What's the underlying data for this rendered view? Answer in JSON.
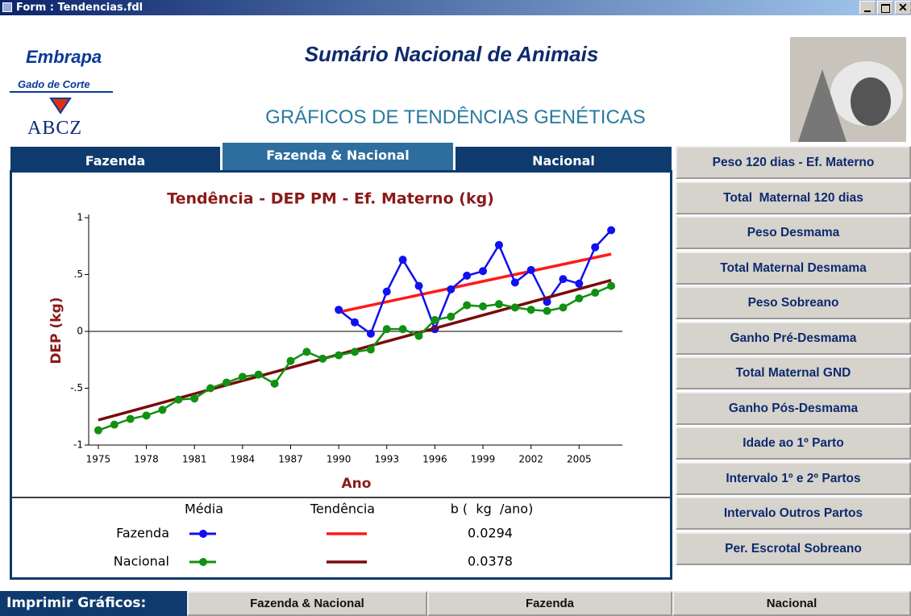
{
  "window": {
    "title": "Form : Tendencias.fdl"
  },
  "header": {
    "logo": "Embrapa",
    "logo_subtitle": "Gado de Corte",
    "logo2": "ABCZ",
    "title": "Sumário Nacional de Animais",
    "subtitle": "GRÁFICOS DE TENDÊNCIAS GENÉTICAS"
  },
  "tabs": [
    "Fazenda",
    "Fazenda & Nacional",
    "Nacional"
  ],
  "buttons": [
    "Peso 120 dias - Ef. Materno",
    "Total  Maternal 120 dias",
    "Peso Desmama",
    "Total Maternal Desmama",
    "Peso Sobreano",
    "Ganho Pré-Desmama",
    "Total Maternal GND",
    "Ganho Pós-Desmama",
    "Idade ao 1º Parto",
    "Intervalo 1º e 2º Partos",
    "Intervalo Outros Partos",
    "Per. Escrotal Sobreano"
  ],
  "print": {
    "label": "Imprimir Gráficos:",
    "buttons": [
      "Fazenda & Nacional",
      "Fazenda",
      "Nacional"
    ]
  },
  "chart_data": {
    "type": "line",
    "title": "Tendência - DEP PM - Ef. Materno (kg)",
    "x_label": "Ano",
    "y_label": "DEP (kg)",
    "x": [
      1975,
      1976,
      1977,
      1978,
      1979,
      1980,
      1981,
      1982,
      1983,
      1984,
      1985,
      1986,
      1987,
      1988,
      1989,
      1990,
      1991,
      1992,
      1993,
      1994,
      1995,
      1996,
      1997,
      1998,
      1999,
      2000,
      2001,
      2002,
      2003,
      2004,
      2005,
      2006,
      2007
    ],
    "series": [
      {
        "name": "Fazenda",
        "color": "#1010f0",
        "values": [
          null,
          null,
          null,
          null,
          null,
          null,
          null,
          null,
          null,
          null,
          null,
          null,
          null,
          null,
          null,
          0.19,
          0.08,
          -0.02,
          0.35,
          0.63,
          0.4,
          0.02,
          0.37,
          0.49,
          0.53,
          0.76,
          0.43,
          0.54,
          0.26,
          0.46,
          0.42,
          0.74,
          0.89
        ],
        "trend": {
          "color": "#ff1a1a",
          "x": [
            1990,
            2007
          ],
          "values": [
            0.17,
            0.68
          ]
        },
        "b": 0.0294
      },
      {
        "name": "Nacional",
        "color": "#119011",
        "values": [
          -0.87,
          -0.82,
          -0.77,
          -0.74,
          -0.69,
          -0.6,
          -0.59,
          -0.5,
          -0.45,
          -0.4,
          -0.38,
          -0.46,
          -0.26,
          -0.18,
          -0.24,
          -0.21,
          -0.18,
          -0.16,
          0.02,
          0.02,
          -0.04,
          0.1,
          0.13,
          0.23,
          0.22,
          0.24,
          0.21,
          0.19,
          0.18,
          0.21,
          0.29,
          0.34,
          0.4
        ],
        "trend": {
          "color": "#7a0a0a",
          "x": [
            1975,
            2007
          ],
          "values": [
            -0.78,
            0.45
          ]
        },
        "b": 0.0378
      }
    ],
    "legend_headers": [
      "Média",
      "Tendência",
      "b (  kg  /ano)"
    ],
    "xlim": [
      1974.4,
      2007.7
    ],
    "ylim": [
      -1,
      1
    ],
    "xticks": [
      1975,
      1978,
      1981,
      1984,
      1987,
      1990,
      1993,
      1996,
      1999,
      2002,
      2005
    ],
    "yticks": [
      1,
      {
        "value": 0.5,
        "label": ".5"
      },
      0,
      {
        "value": -0.5,
        "label": "-.5"
      },
      -1
    ]
  }
}
